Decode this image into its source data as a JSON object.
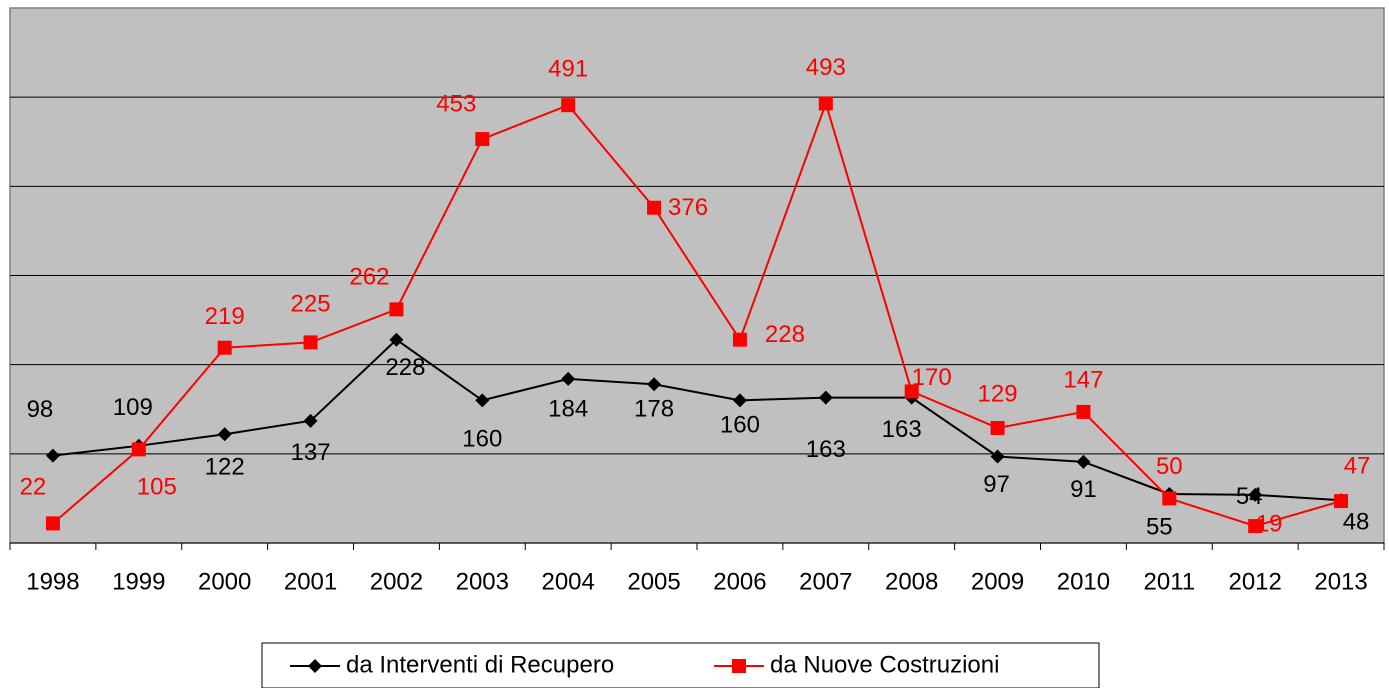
{
  "chart_data": {
    "type": "line",
    "categories": [
      "1998",
      "1999",
      "2000",
      "2001",
      "2002",
      "2003",
      "2004",
      "2005",
      "2006",
      "2007",
      "2008",
      "2009",
      "2010",
      "2011",
      "2012",
      "2013"
    ],
    "series": [
      {
        "name": "da Interventi di Recupero",
        "color": "#000000",
        "marker": "diamond",
        "values": [
          98,
          109,
          122,
          137,
          228,
          160,
          184,
          178,
          160,
          163,
          163,
          97,
          91,
          55,
          54,
          48
        ]
      },
      {
        "name": "da Nuove Costruzioni",
        "color": "#ff0000",
        "marker": "square",
        "values": [
          22,
          105,
          219,
          225,
          262,
          453,
          491,
          376,
          228,
          493,
          170,
          129,
          147,
          50,
          19,
          47
        ]
      }
    ],
    "ylim": [
      0,
      600
    ],
    "yticks": [
      0,
      100,
      200,
      300,
      400,
      500,
      600
    ],
    "grid": true,
    "legend": "bottom"
  }
}
